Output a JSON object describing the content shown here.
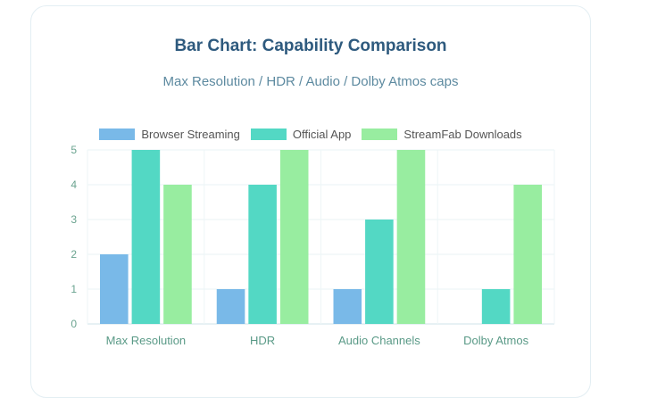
{
  "chart_data": {
    "type": "bar",
    "title": "Bar Chart: Capability Comparison",
    "subtitle": "Max Resolution / HDR / Audio / Dolby Atmos caps",
    "categories": [
      "Max Resolution",
      "HDR",
      "Audio Channels",
      "Dolby Atmos"
    ],
    "series": [
      {
        "name": "Browser Streaming",
        "color": "#79b9e8",
        "values": [
          2,
          1,
          1,
          0
        ]
      },
      {
        "name": "Official App",
        "color": "#53d8c4",
        "values": [
          5,
          4,
          3,
          1
        ]
      },
      {
        "name": "StreamFab Downloads",
        "color": "#98eda0",
        "values": [
          4,
          5,
          5,
          4
        ]
      }
    ],
    "ylim": [
      0,
      5
    ],
    "yticks": [
      "0",
      "1",
      "2",
      "3",
      "4",
      "5"
    ],
    "grid": true,
    "legend_position": "top-center"
  }
}
